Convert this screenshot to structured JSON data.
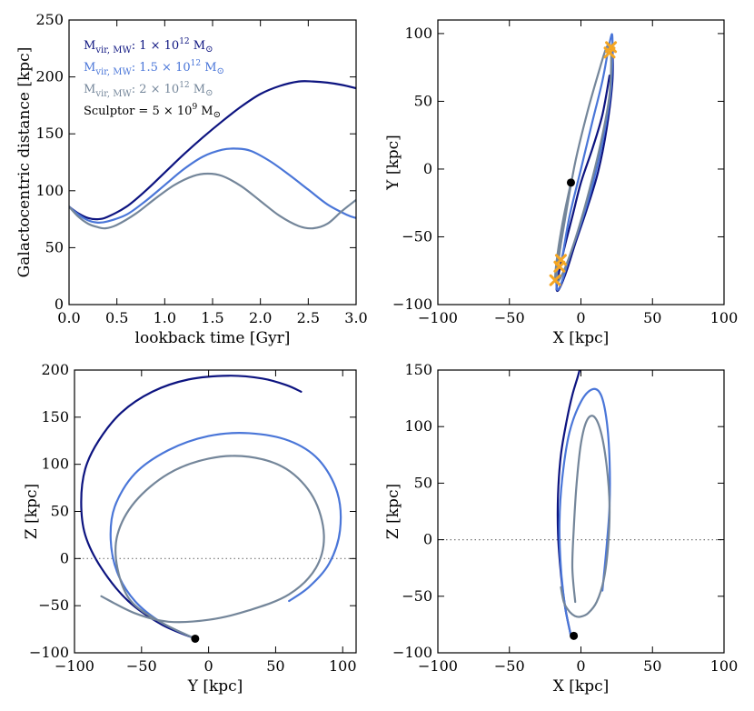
{
  "colors": {
    "mw1": "#0d1480",
    "mw15": "#4a76d8",
    "mw2": "#74869a",
    "marker_current": "#000000",
    "marker_cross": "#f5a623"
  },
  "legend": [
    {
      "prefix": "M",
      "sub": "vir, MW",
      "text": ": 1 × 10",
      "sup": "12",
      "suffix": " M",
      "sun": "⊙",
      "color": "#0d1480"
    },
    {
      "prefix": "M",
      "sub": "vir, MW",
      "text": ": 1.5 × 10",
      "sup": "12",
      "suffix": " M",
      "sun": "⊙",
      "color": "#4a76d8"
    },
    {
      "prefix": "M",
      "sub": "vir, MW",
      "text": ": 2 × 10",
      "sup": "12",
      "suffix": " M",
      "sun": "⊙",
      "color": "#74869a"
    },
    {
      "prefix": "Sculptor = 5 × 10",
      "sub": "",
      "text": "",
      "sup": "9",
      "suffix": " M",
      "sun": "⊙",
      "color": "#000000"
    }
  ],
  "chart_data": [
    {
      "type": "line",
      "id": "distance",
      "xlabel": "lookback time [Gyr]",
      "ylabel": "Galactocentric distance [kpc]",
      "xlim": [
        0,
        3
      ],
      "ylim": [
        0,
        250
      ],
      "xticks": [
        "0.0",
        "0.5",
        "1.0",
        "1.5",
        "2.0",
        "2.5",
        "3.0"
      ],
      "yticks": [
        "0",
        "50",
        "100",
        "150",
        "200",
        "250"
      ],
      "xtick_values": [
        0,
        0.5,
        1,
        1.5,
        2,
        2.5,
        3
      ],
      "ytick_values": [
        0,
        50,
        100,
        150,
        200,
        250
      ],
      "series": [
        {
          "name": "M_vir,MW = 1e12",
          "color": "#0d1480",
          "x": [
            0,
            0.1,
            0.2,
            0.3,
            0.4,
            0.6,
            0.8,
            1.0,
            1.2,
            1.4,
            1.6,
            1.8,
            2.0,
            2.2,
            2.4,
            2.55,
            2.7,
            2.85,
            3.0
          ],
          "y": [
            86,
            80,
            76,
            75,
            77,
            86,
            100,
            116,
            132,
            147,
            161,
            174,
            185,
            192,
            196,
            196,
            195,
            193,
            190
          ]
        },
        {
          "name": "M_vir,MW = 1.5e12",
          "color": "#4a76d8",
          "x": [
            0,
            0.1,
            0.2,
            0.3,
            0.4,
            0.6,
            0.8,
            1.0,
            1.2,
            1.4,
            1.6,
            1.75,
            1.9,
            2.1,
            2.3,
            2.5,
            2.7,
            2.9,
            3.0
          ],
          "y": [
            86,
            79,
            74,
            72,
            73,
            79,
            91,
            105,
            119,
            130,
            136,
            137,
            135,
            126,
            114,
            101,
            88,
            79,
            76
          ]
        },
        {
          "name": "M_vir,MW = 2e12",
          "color": "#74869a",
          "x": [
            0,
            0.1,
            0.2,
            0.3,
            0.38,
            0.5,
            0.7,
            0.9,
            1.1,
            1.3,
            1.45,
            1.6,
            1.8,
            2.0,
            2.2,
            2.4,
            2.55,
            2.7,
            2.85,
            3.0
          ],
          "y": [
            86,
            77,
            71,
            68,
            67,
            70,
            80,
            93,
            105,
            113,
            115,
            113,
            104,
            91,
            78,
            69,
            67,
            71,
            82,
            92
          ]
        }
      ],
      "markers": []
    },
    {
      "type": "line",
      "id": "xy",
      "xlabel": "X [kpc]",
      "ylabel": "Y [kpc]",
      "xlim": [
        -100,
        100
      ],
      "ylim": [
        -100,
        110
      ],
      "xticks": [
        "−100",
        "−50",
        "0",
        "50",
        "100"
      ],
      "yticks": [
        "−100",
        "−50",
        "0",
        "50",
        "100"
      ],
      "xtick_values": [
        -100,
        -50,
        0,
        50,
        100
      ],
      "ytick_values": [
        -100,
        -50,
        0,
        50,
        100
      ],
      "series": [
        {
          "name": "M_vir,MW = 1e12",
          "color": "#0d1480",
          "x": [
            20,
            15,
            8,
            0,
            -6,
            -12,
            -16,
            -17,
            -15,
            -10,
            -4,
            4,
            12,
            18,
            22,
            22
          ],
          "y": [
            69,
            40,
            15,
            -10,
            -35,
            -60,
            -80,
            -89,
            -88,
            -75,
            -55,
            -30,
            -2,
            30,
            65,
            92
          ]
        },
        {
          "name": "M_vir,MW = 1.5e12",
          "color": "#4a76d8",
          "x": [
            -7,
            -12,
            -16,
            -17,
            -14,
            -8,
            0,
            8,
            16,
            21,
            22,
            20,
            15,
            8,
            0,
            -8,
            -13
          ],
          "y": [
            -10,
            -40,
            -70,
            -88,
            -85,
            -65,
            -40,
            -12,
            25,
            60,
            97,
            93,
            65,
            35,
            0,
            -35,
            -65
          ]
        },
        {
          "name": "M_vir,MW = 2e12",
          "color": "#74869a",
          "x": [
            -7,
            -12,
            -16,
            -18,
            -16,
            -10,
            -2,
            6,
            14,
            20,
            21,
            18,
            12,
            4,
            -4,
            -10,
            -14,
            -16,
            -18
          ],
          "y": [
            -10,
            -35,
            -60,
            -80,
            -83,
            -70,
            -45,
            -15,
            20,
            55,
            88,
            90,
            70,
            40,
            5,
            -30,
            -55,
            -70,
            -82
          ]
        }
      ],
      "markers": [
        {
          "kind": "current",
          "x": -7,
          "y": -10,
          "color": "#000000"
        },
        {
          "kind": "cross",
          "x": 20,
          "y": 86,
          "color": "#f5a623"
        },
        {
          "kind": "cross",
          "x": 21,
          "y": 90,
          "color": "#f5a623"
        },
        {
          "kind": "cross",
          "x": -14,
          "y": -67,
          "color": "#f5a623"
        },
        {
          "kind": "cross",
          "x": -15,
          "y": -72,
          "color": "#f5a623"
        },
        {
          "kind": "cross",
          "x": -18,
          "y": -82,
          "color": "#f5a623"
        }
      ]
    },
    {
      "type": "line",
      "id": "yz",
      "xlabel": "Y [kpc]",
      "ylabel": "Z [kpc]",
      "xlim": [
        -100,
        110
      ],
      "ylim": [
        -100,
        200
      ],
      "xticks": [
        "−100",
        "−50",
        "0",
        "50",
        "100"
      ],
      "yticks": [
        "−100",
        "−50",
        "0",
        "50",
        "100",
        "150",
        "200"
      ],
      "xtick_values": [
        -100,
        -50,
        0,
        50,
        100
      ],
      "ytick_values": [
        -100,
        -50,
        0,
        50,
        100,
        150,
        200
      ],
      "zero_line": true,
      "series": [
        {
          "name": "M_vir,MW = 1e12",
          "color": "#0d1480",
          "x": [
            -10,
            -35,
            -60,
            -80,
            -92,
            -95,
            -92,
            -82,
            -65,
            -42,
            -15,
            15,
            40,
            58,
            69
          ],
          "y": [
            -85,
            -70,
            -45,
            -10,
            25,
            60,
            95,
            125,
            155,
            177,
            190,
            194,
            191,
            184,
            177
          ]
        },
        {
          "name": "M_vir,MW = 1.5e12",
          "color": "#4a76d8",
          "x": [
            -10,
            -35,
            -55,
            -68,
            -73,
            -70,
            -55,
            -30,
            0,
            30,
            60,
            82,
            96,
            98,
            90,
            75,
            60
          ],
          "y": [
            -85,
            -68,
            -45,
            -15,
            20,
            55,
            90,
            115,
            130,
            133,
            125,
            105,
            70,
            30,
            -5,
            -30,
            -45
          ]
        },
        {
          "name": "M_vir,MW = 2e12",
          "color": "#74869a",
          "x": [
            -10,
            -35,
            -58,
            -68,
            -68,
            -55,
            -30,
            0,
            30,
            58,
            78,
            86,
            80,
            60,
            30,
            0,
            -30,
            -55,
            -80
          ],
          "y": [
            -85,
            -68,
            -45,
            -10,
            25,
            60,
            90,
            106,
            108,
            95,
            65,
            25,
            -10,
            -38,
            -55,
            -65,
            -67,
            -58,
            -40
          ]
        }
      ],
      "markers": [
        {
          "kind": "current",
          "x": -10,
          "y": -85,
          "color": "#000000"
        }
      ]
    },
    {
      "type": "line",
      "id": "xz",
      "xlabel": "X [kpc]",
      "ylabel": "Z [kpc]",
      "xlim": [
        -100,
        100
      ],
      "ylim": [
        -100,
        150
      ],
      "xticks": [
        "−100",
        "−50",
        "0",
        "50",
        "100"
      ],
      "yticks": [
        "−100",
        "−50",
        "0",
        "50",
        "100",
        "150"
      ],
      "xtick_values": [
        -100,
        -50,
        0,
        50,
        100
      ],
      "ytick_values": [
        -100,
        -50,
        0,
        50,
        100,
        150
      ],
      "zero_line": true,
      "series": [
        {
          "name": "M_vir,MW = 1e12",
          "color": "#0d1480",
          "x": [
            -7,
            -11,
            -14,
            -16,
            -16,
            -14,
            -10,
            -6,
            -2,
            0
          ],
          "y": [
            -85,
            -60,
            -30,
            5,
            40,
            75,
            105,
            128,
            145,
            155
          ]
        },
        {
          "name": "M_vir,MW = 1.5e12",
          "color": "#4a76d8",
          "x": [
            -7,
            -11,
            -14,
            -15,
            -13,
            -8,
            0,
            8,
            14,
            18,
            20,
            20,
            18,
            15
          ],
          "y": [
            -85,
            -60,
            -25,
            15,
            55,
            95,
            122,
            133,
            128,
            105,
            70,
            30,
            -5,
            -45
          ]
        },
        {
          "name": "M_vir,MW = 2e12",
          "color": "#74869a",
          "x": [
            -14,
            -12,
            -9,
            -6,
            -3,
            0,
            5,
            11,
            16,
            19,
            20,
            18,
            14,
            9,
            4,
            0,
            -3,
            -5,
            -6,
            -4
          ],
          "y": [
            -42,
            -55,
            -62,
            -66,
            -68,
            -68,
            -65,
            -55,
            -35,
            -5,
            30,
            65,
            95,
            109,
            105,
            85,
            50,
            10,
            -25,
            -55
          ]
        }
      ],
      "markers": [
        {
          "kind": "current",
          "x": -5,
          "y": -85,
          "color": "#000000"
        }
      ]
    }
  ]
}
